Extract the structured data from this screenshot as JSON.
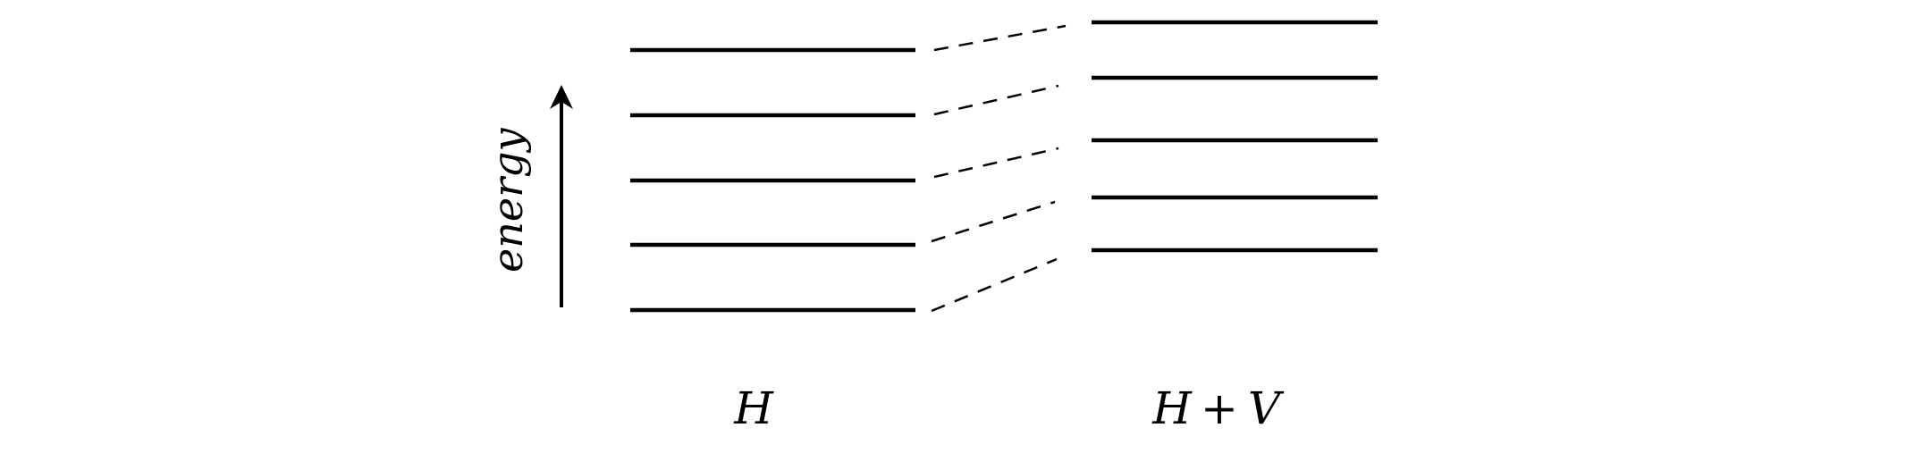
{
  "axis": {
    "label": "energy",
    "arrow_icon": "arrow-up-icon"
  },
  "left_column": {
    "label": "H",
    "level_count": 5
  },
  "right_column": {
    "label_parts": [
      "H",
      "+",
      "V"
    ],
    "level_count": 5
  },
  "connectors": {
    "style": "dashed",
    "count": 5
  },
  "colors": {
    "line": "#000000",
    "background": "#ffffff"
  }
}
